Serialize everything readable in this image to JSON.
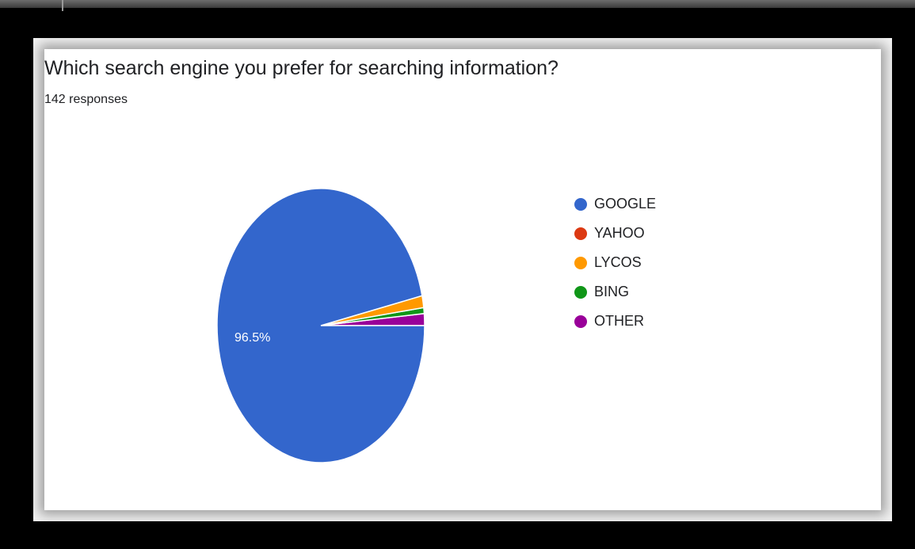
{
  "chart_data": {
    "type": "pie",
    "title": "Which search engine you prefer for searching information?",
    "subtitle": "142 responses",
    "slices": [
      {
        "label": "GOOGLE",
        "value": 96.5,
        "color": "#3366cc",
        "shown_label": "96.5%"
      },
      {
        "label": "YAHOO",
        "value": 0,
        "color": "#dc3912",
        "shown_label": ""
      },
      {
        "label": "LYCOS",
        "value": 1.4,
        "color": "#ff9900",
        "shown_label": ""
      },
      {
        "label": "BING",
        "value": 0.7,
        "color": "#109618",
        "shown_label": ""
      },
      {
        "label": "OTHER",
        "value": 1.4,
        "color": "#990099",
        "shown_label": ""
      }
    ],
    "legend_position": "right"
  }
}
